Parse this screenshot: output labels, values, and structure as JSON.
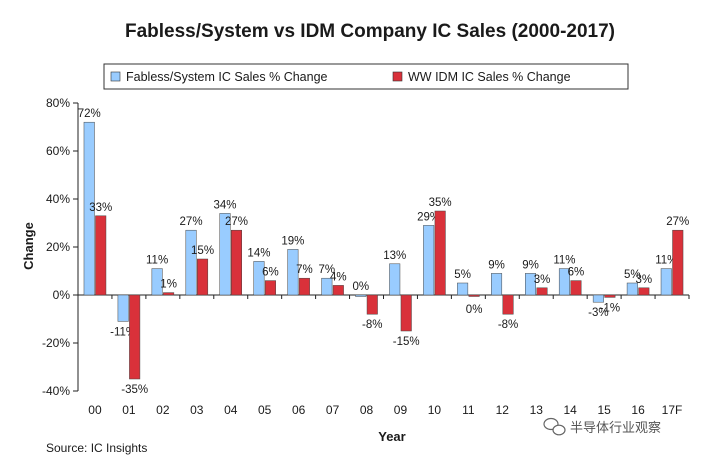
{
  "watermark": {
    "text": "半导体行业观察",
    "icon": "wechat-icon"
  },
  "source": "Source: IC Insights",
  "chart_data": {
    "type": "bar",
    "title": "Fabless/System vs IDM Company IC Sales (2000-2017)",
    "xlabel": "Year",
    "ylabel": "Change",
    "ylim": [
      -40,
      80
    ],
    "yticks": [
      80,
      60,
      40,
      20,
      0,
      -20,
      -40
    ],
    "ytick_labels": [
      "80%",
      "60%",
      "40%",
      "20%",
      "0%",
      "-20%",
      "-40%"
    ],
    "grid": false,
    "legend_position": "top",
    "categories": [
      "00",
      "01",
      "02",
      "03",
      "04",
      "05",
      "06",
      "07",
      "08",
      "09",
      "10",
      "11",
      "12",
      "13",
      "14",
      "15",
      "16",
      "17F"
    ],
    "series": [
      {
        "name": "Fabless/System IC Sales % Change",
        "color": "#99ccff",
        "values": [
          72,
          -11,
          11,
          27,
          34,
          14,
          19,
          7,
          0,
          13,
          29,
          5,
          9,
          9,
          11,
          -3,
          5,
          11
        ],
        "labels": [
          "72%",
          "-11%",
          "11%",
          "27%",
          "34%",
          "14%",
          "19%",
          "7%",
          "0%",
          "13%",
          "29%",
          "5%",
          "9%",
          "9%",
          "11%",
          "-3%",
          "5%",
          "11%"
        ]
      },
      {
        "name": "WW IDM IC Sales % Change",
        "color": "#d9313a",
        "values": [
          33,
          -35,
          1,
          15,
          27,
          6,
          7,
          4,
          -8,
          -15,
          35,
          0,
          -8,
          3,
          6,
          -1,
          3,
          27
        ],
        "labels": [
          "33%",
          "-35%",
          "1%",
          "15%",
          "27%",
          "6%",
          "7%",
          "4%",
          "-8%",
          "-15%",
          "35%",
          "0%",
          "-8%",
          "3%",
          "6%",
          "-1%",
          "3%",
          "27%"
        ]
      }
    ]
  }
}
